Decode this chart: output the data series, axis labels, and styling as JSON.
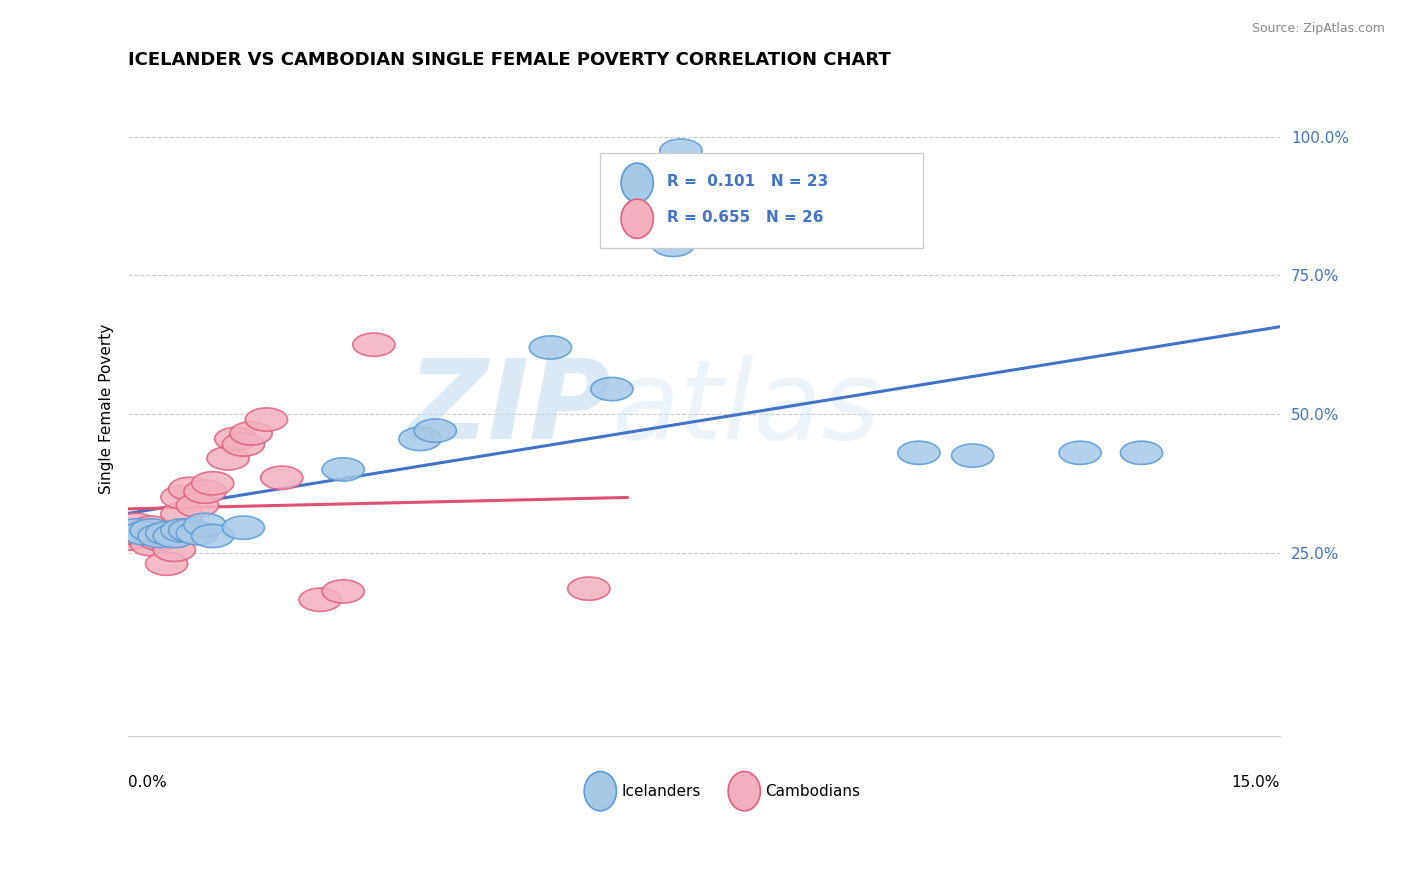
{
  "title": "ICELANDER VS CAMBODIAN SINGLE FEMALE POVERTY CORRELATION CHART",
  "source": "Source: ZipAtlas.com",
  "ylabel": "Single Female Poverty",
  "xlim": [
    0.0,
    0.15
  ],
  "ylim": [
    -0.08,
    1.1
  ],
  "ytick_vals": [
    0.25,
    0.5,
    0.75,
    1.0
  ],
  "ytick_labels": [
    "25.0%",
    "50.0%",
    "75.0%",
    "100.0%"
  ],
  "legend_line1": "R =  0.101   N = 23",
  "legend_line2": "R = 0.655   N = 26",
  "ice_color": "#a8c8e8",
  "ice_edge": "#5b9bd5",
  "cam_color": "#f4b0c0",
  "cam_edge": "#e06080",
  "ice_line_color": "#4472c4",
  "cam_line_color": "#e05070",
  "watermark_zip": "ZIP",
  "watermark_atlas": "atlas",
  "grid_color": "#cccccc",
  "ice_x": [
    0.001,
    0.002,
    0.003,
    0.004,
    0.005,
    0.006,
    0.007,
    0.008,
    0.009,
    0.01,
    0.011,
    0.015,
    0.028,
    0.038,
    0.04,
    0.055,
    0.063,
    0.071,
    0.072,
    0.103,
    0.11,
    0.124,
    0.132
  ],
  "ice_y": [
    0.29,
    0.285,
    0.29,
    0.28,
    0.285,
    0.28,
    0.29,
    0.29,
    0.285,
    0.3,
    0.28,
    0.295,
    0.4,
    0.455,
    0.47,
    0.62,
    0.545,
    0.805,
    0.975,
    0.43,
    0.425,
    0.43,
    0.43
  ],
  "cam_x": [
    0.0,
    0.001,
    0.002,
    0.003,
    0.003,
    0.004,
    0.005,
    0.005,
    0.006,
    0.006,
    0.007,
    0.007,
    0.008,
    0.009,
    0.01,
    0.011,
    0.013,
    0.014,
    0.015,
    0.016,
    0.018,
    0.02,
    0.025,
    0.028,
    0.032,
    0.06
  ],
  "cam_y": [
    0.275,
    0.3,
    0.28,
    0.295,
    0.265,
    0.275,
    0.23,
    0.28,
    0.28,
    0.255,
    0.32,
    0.35,
    0.365,
    0.335,
    0.36,
    0.375,
    0.42,
    0.455,
    0.445,
    0.465,
    0.49,
    0.385,
    0.165,
    0.18,
    0.625,
    0.185
  ]
}
